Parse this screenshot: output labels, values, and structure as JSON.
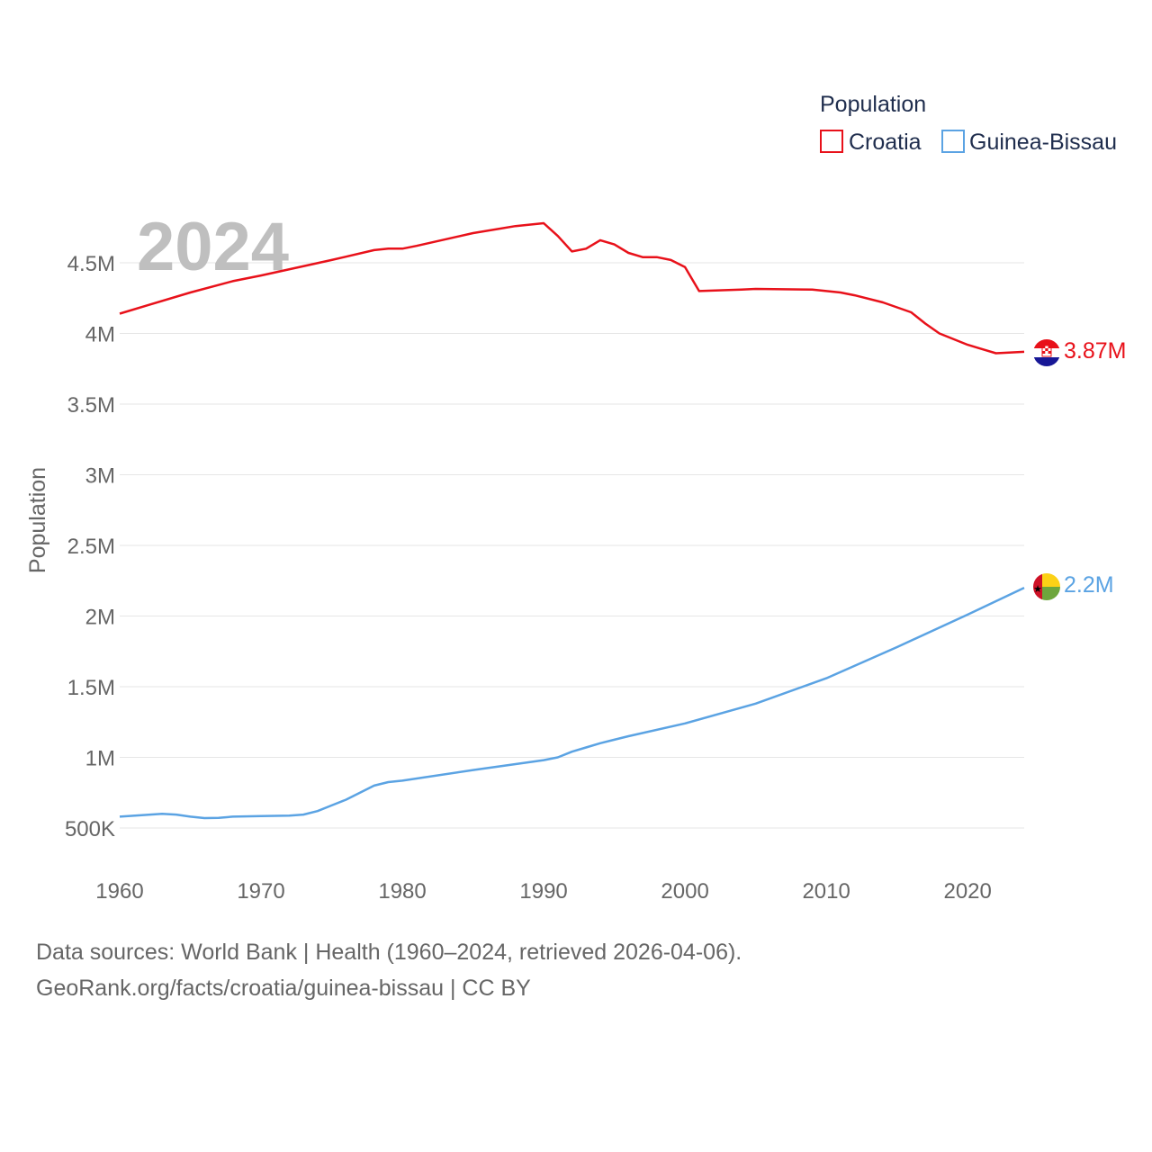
{
  "chart_data": {
    "type": "line",
    "year_label": "2024",
    "ylabel": "Population",
    "xlabel": "",
    "xlim": [
      1960,
      2024
    ],
    "ylim": [
      250000,
      5000000
    ],
    "x_ticks": [
      1960,
      1970,
      1980,
      1990,
      2000,
      2010,
      2020
    ],
    "x_tick_labels": [
      "1960",
      "1970",
      "1980",
      "1990",
      "2000",
      "2010",
      "2020"
    ],
    "y_ticks": [
      500000,
      1000000,
      1500000,
      2000000,
      2500000,
      3000000,
      3500000,
      4000000,
      4500000
    ],
    "y_tick_labels": [
      "500K",
      "1M",
      "1.5M",
      "2M",
      "2.5M",
      "3M",
      "3.5M",
      "4M",
      "4.5M"
    ],
    "legend": {
      "title": "Population",
      "placement": "top-right"
    },
    "grid": true,
    "series": [
      {
        "name": "Croatia",
        "color": "#e8111a",
        "end_label": "3.87M",
        "flag_icon": "croatia-flag-icon",
        "x": [
          1960,
          1962,
          1965,
          1968,
          1970,
          1975,
          1978,
          1979,
          1980,
          1981,
          1985,
          1988,
          1990,
          1991,
          1992,
          1993,
          1994,
          1995,
          1996,
          1997,
          1998,
          1999,
          2000,
          2001,
          2004,
          2005,
          2009,
          2011,
          2012,
          2014,
          2016,
          2017,
          2018,
          2020,
          2021,
          2022,
          2024
        ],
        "values": [
          4140000,
          4200000,
          4290000,
          4370000,
          4410000,
          4520000,
          4590000,
          4600000,
          4600000,
          4620000,
          4710000,
          4760000,
          4780000,
          4690000,
          4580000,
          4600000,
          4660000,
          4630000,
          4570000,
          4540000,
          4540000,
          4520000,
          4470000,
          4300000,
          4310000,
          4315000,
          4310000,
          4290000,
          4270000,
          4220000,
          4150000,
          4070000,
          4000000,
          3920000,
          3890000,
          3860000,
          3870000
        ]
      },
      {
        "name": "Guinea-Bissau",
        "color": "#5ba3e3",
        "end_label": "2.2M",
        "flag_icon": "guinea-bissau-flag-icon",
        "x": [
          1960,
          1963,
          1964,
          1965,
          1966,
          1967,
          1968,
          1970,
          1972,
          1973,
          1974,
          1975,
          1976,
          1977,
          1978,
          1979,
          1980,
          1985,
          1990,
          1991,
          1992,
          1993,
          1994,
          1995,
          1996,
          2000,
          2005,
          2010,
          2015,
          2020,
          2024
        ],
        "values": [
          580000,
          600000,
          595000,
          580000,
          570000,
          572000,
          580000,
          585000,
          588000,
          595000,
          620000,
          660000,
          700000,
          750000,
          800000,
          825000,
          835000,
          910000,
          980000,
          1000000,
          1040000,
          1070000,
          1100000,
          1125000,
          1150000,
          1240000,
          1380000,
          1560000,
          1780000,
          2010000,
          2200000
        ]
      }
    ]
  },
  "source": {
    "line1": "Data sources: World Bank | Health (1960–2024, retrieved 2026-04-06).",
    "line2": "GeoRank.org/facts/croatia/guinea-bissau | CC BY"
  }
}
